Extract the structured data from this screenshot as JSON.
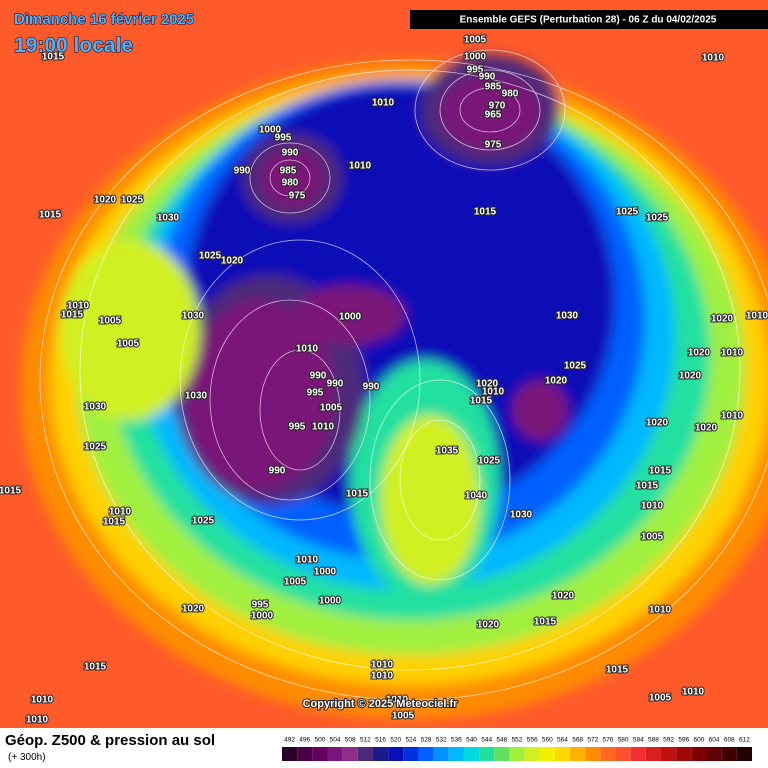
{
  "header": {
    "date": "Dimanche 16 février 2025",
    "time": "19:00 locale",
    "run": "Ensemble GEFS  (Perturbation 28)  -  06 Z du 04/02/2025",
    "copyright": "Copyright © 2025 Meteociel.fr"
  },
  "footer": {
    "title": "Géop. Z500 & pression au sol",
    "lead": "(+ 300h)"
  },
  "colorbar": {
    "levels": [
      492,
      496,
      500,
      504,
      508,
      512,
      516,
      520,
      524,
      528,
      532,
      536,
      540,
      544,
      548,
      552,
      556,
      560,
      564,
      568,
      572,
      576,
      580,
      584,
      588,
      592,
      596,
      600,
      604,
      608,
      612
    ],
    "colors": [
      "#2a0028",
      "#4a0046",
      "#66005f",
      "#7a1478",
      "#8e2d8a",
      "#4c2a7a",
      "#1a1a8c",
      "#0a10b8",
      "#0030e0",
      "#0060ff",
      "#0090ff",
      "#00b8ff",
      "#00d8e0",
      "#20e0a0",
      "#60e060",
      "#a0f040",
      "#d0f020",
      "#f0f000",
      "#ffd800",
      "#ffb000",
      "#ff8c00",
      "#ff6a20",
      "#ff5030",
      "#f03030",
      "#d82020",
      "#c01010",
      "#a00808",
      "#800000",
      "#600000",
      "#400000",
      "#200000"
    ]
  },
  "pressure_labels": [
    1005,
    1000,
    995,
    990,
    985,
    980,
    970,
    965,
    975,
    1010,
    1010,
    1000,
    995,
    990,
    990,
    985,
    980,
    975,
    1010,
    1015,
    1015,
    1020,
    1025,
    1030,
    1015,
    1025,
    1025,
    1025,
    1020,
    1010,
    1015,
    1005,
    1030,
    1005,
    1000,
    1030,
    1020,
    1010,
    1010,
    1020,
    1010,
    990,
    990,
    990,
    995,
    1025,
    1020,
    1020,
    1020,
    1010,
    1015,
    1030,
    1030,
    1005,
    1010,
    995,
    1010,
    1020,
    1020,
    1025,
    1035,
    1025,
    1015,
    990,
    1015,
    1015,
    1040,
    1015,
    1010,
    1015,
    1025,
    1030,
    1010,
    1005,
    1010,
    1000,
    1005,
    1020,
    995,
    1000,
    1000,
    1020,
    1010,
    1015,
    1020,
    1015,
    1010,
    1010,
    1015,
    1010,
    1010,
    1010,
    1005,
    1005,
    1010
  ]
}
